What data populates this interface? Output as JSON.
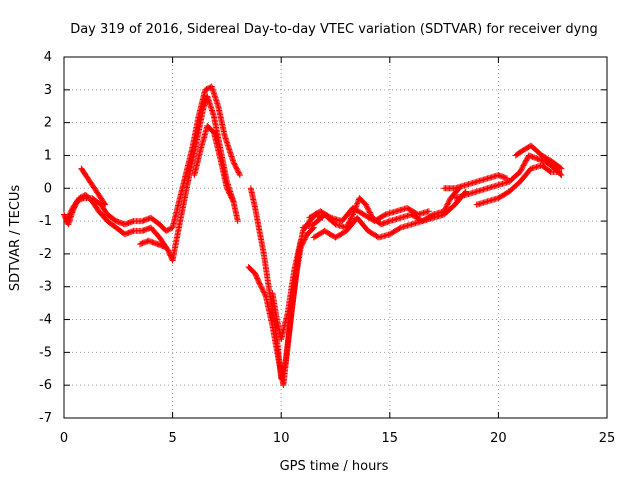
{
  "chart_data": {
    "type": "scatter",
    "title": "Day 319 of 2016, Sidereal Day-to-day VTEC variation (SDTVAR) for receiver dyng",
    "xlabel": "GPS time / hours",
    "ylabel": "SDTVAR / TECUs",
    "xlim": [
      0,
      25
    ],
    "ylim": [
      -7,
      4
    ],
    "xticks": [
      0,
      5,
      10,
      15,
      20,
      25
    ],
    "yticks": [
      -7,
      -6,
      -5,
      -4,
      -3,
      -2,
      -1,
      0,
      1,
      2,
      3,
      4
    ],
    "grid": true,
    "legend": "none",
    "marker": "plus",
    "color": "#ff0000",
    "series": [
      {
        "tracks": [
          [
            [
              0.0,
              -0.8
            ],
            [
              0.2,
              -1.1
            ],
            [
              0.4,
              -0.7
            ],
            [
              0.6,
              -0.4
            ],
            [
              0.9,
              -0.3
            ],
            [
              1.3,
              -0.3
            ],
            [
              1.7,
              -0.5
            ],
            [
              2.0,
              -0.8
            ],
            [
              2.4,
              -1.0
            ],
            [
              2.8,
              -1.1
            ],
            [
              3.2,
              -1.0
            ],
            [
              3.6,
              -1.0
            ],
            [
              4.0,
              -0.9
            ],
            [
              4.4,
              -1.1
            ],
            [
              4.7,
              -1.3
            ],
            [
              5.0,
              -1.2
            ],
            [
              5.3,
              -0.4
            ],
            [
              5.6,
              0.4
            ],
            [
              5.9,
              1.2
            ],
            [
              6.2,
              2.2
            ],
            [
              6.5,
              3.0
            ],
            [
              6.8,
              3.1
            ],
            [
              7.1,
              2.5
            ],
            [
              7.4,
              1.6
            ],
            [
              7.8,
              0.8
            ],
            [
              8.1,
              0.4
            ]
          ],
          [
            [
              0.1,
              -1.0
            ],
            [
              0.4,
              -0.6
            ],
            [
              0.7,
              -0.3
            ],
            [
              1.0,
              -0.2
            ],
            [
              1.3,
              -0.4
            ],
            [
              1.6,
              -0.7
            ],
            [
              2.0,
              -1.0
            ],
            [
              2.4,
              -1.2
            ],
            [
              2.8,
              -1.4
            ],
            [
              3.2,
              -1.3
            ],
            [
              3.6,
              -1.3
            ],
            [
              4.0,
              -1.2
            ],
            [
              4.4,
              -1.5
            ],
            [
              4.8,
              -1.9
            ],
            [
              5.0,
              -2.2
            ],
            [
              5.2,
              -1.5
            ],
            [
              5.5,
              -0.5
            ],
            [
              5.8,
              0.5
            ],
            [
              6.1,
              1.4
            ],
            [
              6.4,
              2.4
            ],
            [
              6.6,
              2.8
            ],
            [
              6.9,
              2.2
            ],
            [
              7.2,
              1.2
            ],
            [
              7.5,
              0.2
            ],
            [
              7.8,
              -0.4
            ],
            [
              8.0,
              -1.0
            ]
          ],
          [
            [
              0.8,
              0.6
            ],
            [
              1.0,
              0.4
            ],
            [
              1.3,
              0.1
            ],
            [
              1.6,
              -0.2
            ],
            [
              1.9,
              -0.5
            ]
          ],
          [
            [
              3.5,
              -1.7
            ],
            [
              3.9,
              -1.6
            ],
            [
              4.3,
              -1.7
            ],
            [
              4.7,
              -1.8
            ]
          ],
          [
            [
              6.0,
              0.4
            ],
            [
              6.3,
              1.2
            ],
            [
              6.6,
              1.9
            ],
            [
              6.9,
              1.7
            ],
            [
              7.2,
              0.9
            ],
            [
              7.5,
              0.0
            ],
            [
              7.8,
              -0.4
            ]
          ],
          [
            [
              8.6,
              0.0
            ],
            [
              8.8,
              -0.6
            ],
            [
              9.0,
              -1.3
            ],
            [
              9.2,
              -2.0
            ],
            [
              9.4,
              -2.9
            ],
            [
              9.6,
              -3.7
            ],
            [
              9.8,
              -4.6
            ],
            [
              10.0,
              -5.8
            ],
            [
              10.2,
              -5.3
            ],
            [
              10.4,
              -4.2
            ],
            [
              10.6,
              -3.1
            ],
            [
              10.8,
              -2.0
            ],
            [
              11.0,
              -1.3
            ],
            [
              11.3,
              -1.0
            ],
            [
              11.6,
              -0.8
            ],
            [
              11.9,
              -0.9
            ]
          ],
          [
            [
              8.5,
              -2.4
            ],
            [
              8.8,
              -2.6
            ],
            [
              9.0,
              -2.9
            ],
            [
              9.3,
              -3.3
            ],
            [
              9.6,
              -4.2
            ],
            [
              9.9,
              -5.3
            ],
            [
              10.1,
              -6.0
            ],
            [
              10.3,
              -4.8
            ],
            [
              10.5,
              -3.6
            ],
            [
              10.7,
              -2.6
            ],
            [
              10.9,
              -1.8
            ],
            [
              11.2,
              -1.4
            ],
            [
              11.5,
              -1.2
            ]
          ],
          [
            [
              9.6,
              -3.2
            ],
            [
              9.8,
              -4.0
            ],
            [
              10.0,
              -4.6
            ],
            [
              10.3,
              -3.8
            ],
            [
              10.6,
              -2.5
            ],
            [
              10.9,
              -1.6
            ]
          ],
          [
            [
              11.0,
              -1.2
            ],
            [
              11.5,
              -1.1
            ],
            [
              12.0,
              -0.8
            ],
            [
              12.5,
              -1.1
            ],
            [
              13.0,
              -1.2
            ],
            [
              13.3,
              -0.8
            ],
            [
              13.6,
              -0.3
            ],
            [
              13.9,
              -0.5
            ],
            [
              14.2,
              -0.9
            ],
            [
              14.6,
              -1.1
            ],
            [
              15.0,
              -1.0
            ],
            [
              15.5,
              -0.9
            ],
            [
              16.0,
              -0.8
            ],
            [
              16.5,
              -1.0
            ],
            [
              17.0,
              -0.8
            ],
            [
              17.5,
              -0.7
            ],
            [
              17.8,
              -0.3
            ],
            [
              18.2,
              0.0
            ]
          ],
          [
            [
              11.5,
              -1.5
            ],
            [
              12.0,
              -1.3
            ],
            [
              12.5,
              -1.5
            ],
            [
              13.0,
              -1.3
            ],
            [
              13.5,
              -0.9
            ],
            [
              14.0,
              -1.3
            ],
            [
              14.5,
              -1.5
            ],
            [
              15.0,
              -1.4
            ],
            [
              15.5,
              -1.2
            ],
            [
              16.0,
              -1.1
            ],
            [
              16.5,
              -1.0
            ],
            [
              17.0,
              -0.9
            ],
            [
              17.5,
              -0.8
            ],
            [
              18.0,
              -0.5
            ],
            [
              18.5,
              -0.1
            ]
          ],
          [
            [
              11.3,
              -0.9
            ],
            [
              11.8,
              -0.7
            ],
            [
              12.3,
              -0.9
            ],
            [
              12.8,
              -1.0
            ],
            [
              13.3,
              -0.6
            ],
            [
              13.8,
              -0.8
            ],
            [
              14.3,
              -1.0
            ],
            [
              14.8,
              -0.8
            ],
            [
              15.3,
              -0.7
            ],
            [
              15.8,
              -0.6
            ],
            [
              16.3,
              -0.8
            ],
            [
              16.8,
              -0.7
            ]
          ],
          [
            [
              17.5,
              0.0
            ],
            [
              18.0,
              0.0
            ],
            [
              18.5,
              0.1
            ],
            [
              19.0,
              0.2
            ],
            [
              19.5,
              0.3
            ],
            [
              20.0,
              0.4
            ],
            [
              20.4,
              0.3
            ]
          ],
          [
            [
              18.0,
              -0.3
            ],
            [
              18.5,
              -0.2
            ],
            [
              19.0,
              -0.1
            ],
            [
              19.5,
              0.0
            ],
            [
              20.0,
              0.1
            ],
            [
              20.5,
              0.2
            ],
            [
              21.0,
              0.5
            ],
            [
              21.4,
              1.0
            ],
            [
              21.8,
              0.9
            ],
            [
              22.2,
              0.8
            ],
            [
              22.6,
              0.6
            ],
            [
              22.9,
              0.4
            ]
          ],
          [
            [
              19.0,
              -0.5
            ],
            [
              19.5,
              -0.4
            ],
            [
              20.0,
              -0.3
            ],
            [
              20.5,
              -0.1
            ],
            [
              21.0,
              0.2
            ],
            [
              21.5,
              0.6
            ],
            [
              22.0,
              0.7
            ],
            [
              22.4,
              0.5
            ],
            [
              22.8,
              0.5
            ]
          ],
          [
            [
              20.8,
              1.0
            ],
            [
              21.0,
              1.1
            ],
            [
              21.5,
              1.3
            ],
            [
              22.0,
              1.0
            ],
            [
              22.5,
              0.8
            ],
            [
              22.9,
              0.6
            ]
          ]
        ]
      }
    ]
  }
}
